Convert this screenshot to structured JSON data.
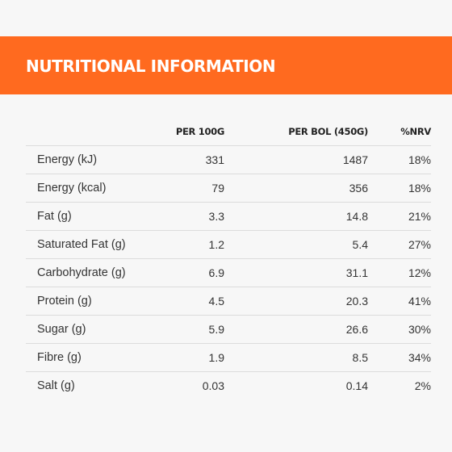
{
  "header": {
    "title": "NUTRITIONAL INFORMATION"
  },
  "table": {
    "columns": [
      "",
      "PER 100G",
      "PER BOL (450G)",
      "%NRV"
    ],
    "rows": [
      {
        "name": "Energy (kJ)",
        "per100": "331",
        "perbol": "1487",
        "nrv": "18%"
      },
      {
        "name": "Energy (kcal)",
        "per100": "79",
        "perbol": "356",
        "nrv": "18%"
      },
      {
        "name": "Fat (g)",
        "per100": "3.3",
        "perbol": "14.8",
        "nrv": "21%"
      },
      {
        "name": "Saturated Fat (g)",
        "per100": "1.2",
        "perbol": "5.4",
        "nrv": "27%"
      },
      {
        "name": "Carbohydrate (g)",
        "per100": "6.9",
        "perbol": "31.1",
        "nrv": "12%"
      },
      {
        "name": "Protein (g)",
        "per100": "4.5",
        "perbol": "20.3",
        "nrv": "41%"
      },
      {
        "name": "Sugar (g)",
        "per100": "5.9",
        "perbol": "26.6",
        "nrv": "30%"
      },
      {
        "name": "Fibre (g)",
        "per100": "1.9",
        "perbol": "8.5",
        "nrv": "34%"
      },
      {
        "name": "Salt (g)",
        "per100": "0.03",
        "perbol": "0.14",
        "nrv": "2%"
      }
    ]
  },
  "colors": {
    "banner": "#ff6a1f",
    "background": "#f7f7f7",
    "divider": "#dcdcdc"
  }
}
